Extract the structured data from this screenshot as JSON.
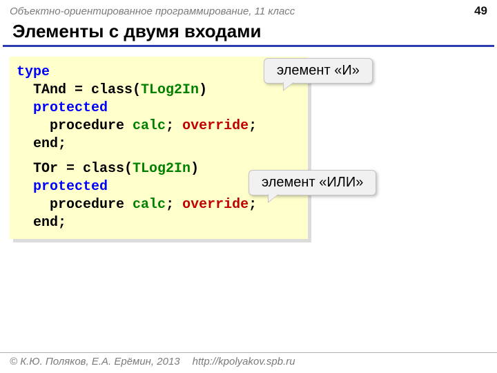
{
  "header": {
    "course": "Объектно-ориентированное программирование, 11 класс",
    "page_number": "49"
  },
  "title": "Элементы с двумя входами",
  "code": {
    "type_kw": "type",
    "tand": "TAnd = class(",
    "tor": "TOr = class(",
    "base_type": "TLog2In",
    "close_paren": ")",
    "protected": "protected",
    "procedure_kw": "procedure ",
    "proc_name": "calc",
    "semicolon1": "; ",
    "override": "override",
    "semicolon2": ";",
    "end": "end;"
  },
  "callouts": {
    "and": "элемент «И»",
    "or": "элемент «ИЛИ»"
  },
  "footer": {
    "copyright": "© К.Ю. Поляков, Е.А. Ерёмин, 2013",
    "url": "http://kpolyakov.spb.ru"
  },
  "colors": {
    "rule": "#2a3db0",
    "code_bg": "#ffffcc",
    "keyword": "#0000ff",
    "type": "#008000",
    "override": "#c00000"
  }
}
